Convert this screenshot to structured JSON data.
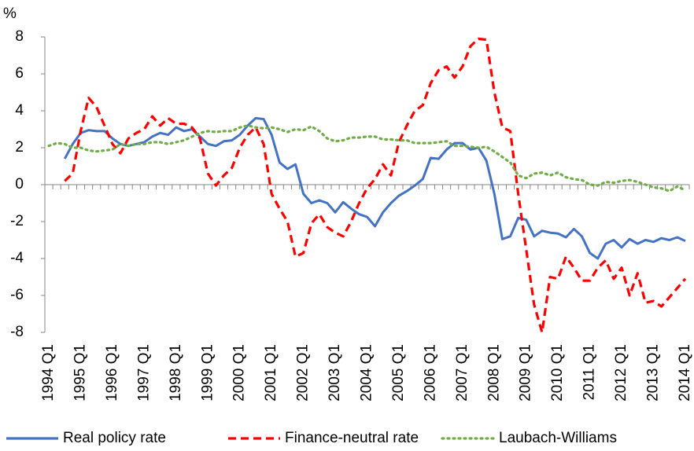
{
  "chart_data": {
    "type": "line",
    "y_unit": "%",
    "categories": [
      "1994 Q1",
      null,
      null,
      null,
      "1995 Q1",
      null,
      null,
      null,
      "1996 Q1",
      null,
      null,
      null,
      "1997 Q1",
      null,
      null,
      null,
      "1998 Q1",
      null,
      null,
      null,
      "1999 Q1",
      null,
      null,
      null,
      "2000 Q1",
      null,
      null,
      null,
      "2001 Q1",
      null,
      null,
      null,
      "2002 Q1",
      null,
      null,
      null,
      "2003 Q1",
      null,
      null,
      null,
      "2004 Q1",
      null,
      null,
      null,
      "2005 Q1",
      null,
      null,
      null,
      "2006 Q1",
      null,
      null,
      null,
      "2007 Q1",
      null,
      null,
      null,
      "2008 Q1",
      null,
      null,
      null,
      "2009 Q1",
      null,
      null,
      null,
      "2010 Q1",
      null,
      null,
      null,
      "2011 Q1",
      null,
      null,
      null,
      "2012 Q1",
      null,
      null,
      null,
      "2013 Q1",
      null,
      null,
      null,
      "2014 Q1"
    ],
    "series": [
      {
        "name": "Real policy rate",
        "color": "#4472c4",
        "style": "solid",
        "values": [
          null,
          null,
          1.4,
          2.2,
          2.8,
          2.95,
          2.9,
          2.9,
          2.5,
          2.2,
          2.1,
          2.2,
          2.3,
          2.6,
          2.8,
          2.7,
          3.1,
          2.9,
          3.0,
          2.6,
          2.2,
          2.1,
          2.35,
          2.4,
          2.7,
          3.2,
          3.6,
          3.55,
          2.7,
          1.2,
          0.85,
          1.1,
          -0.5,
          -1.0,
          -0.85,
          -1.0,
          -1.5,
          -0.95,
          -1.3,
          -1.6,
          -1.75,
          -2.25,
          -1.5,
          -1.0,
          -0.6,
          -0.35,
          -0.05,
          0.3,
          1.45,
          1.4,
          1.9,
          2.25,
          2.25,
          1.9,
          2.0,
          1.3,
          -0.5,
          -2.95,
          -2.8,
          -1.8,
          -1.9,
          -2.8,
          -2.5,
          -2.6,
          -2.65,
          -2.85,
          -2.4,
          -2.8,
          -3.7,
          -4.0,
          -3.2,
          -3.0,
          -3.4,
          -2.95,
          -3.2,
          -3.0,
          -3.1,
          -2.9,
          -3.0,
          -2.85,
          -3.05
        ]
      },
      {
        "name": "Finance-neutral rate",
        "color": "#ff0000",
        "style": "dashed",
        "values": [
          null,
          null,
          0.2,
          0.6,
          2.9,
          4.7,
          4.2,
          3.2,
          2.2,
          1.7,
          2.5,
          2.8,
          3.0,
          3.7,
          3.2,
          3.6,
          3.3,
          3.3,
          3.1,
          2.5,
          0.6,
          -0.05,
          0.5,
          0.9,
          2.0,
          2.7,
          3.1,
          2.2,
          -0.5,
          -1.3,
          -2.0,
          -3.9,
          -3.7,
          -2.1,
          -1.6,
          -2.3,
          -2.6,
          -2.8,
          -2.0,
          -1.0,
          -0.2,
          0.3,
          1.1,
          0.5,
          2.3,
          3.2,
          4.0,
          4.3,
          5.5,
          6.2,
          6.4,
          5.8,
          6.4,
          7.5,
          7.9,
          7.85,
          5.0,
          3.1,
          2.9,
          -0.5,
          -3.5,
          -6.5,
          -8.0,
          -5.0,
          -5.1,
          -3.9,
          -4.5,
          -5.2,
          -5.2,
          -4.5,
          -4.1,
          -5.1,
          -4.5,
          -6.0,
          -4.8,
          -6.4,
          -6.3,
          -6.6,
          -6.1,
          -5.6,
          -5.1
        ]
      },
      {
        "name": "Laubach-Williams",
        "color": "#70ad47",
        "style": "dotted",
        "values": [
          2.1,
          2.25,
          2.2,
          2.0,
          2.0,
          1.85,
          1.8,
          1.85,
          1.9,
          2.2,
          2.1,
          2.2,
          2.2,
          2.3,
          2.3,
          2.2,
          2.3,
          2.4,
          2.6,
          2.8,
          2.9,
          2.85,
          2.9,
          2.9,
          3.1,
          3.2,
          3.1,
          3.05,
          3.1,
          3.0,
          2.85,
          3.0,
          2.95,
          3.15,
          2.9,
          2.5,
          2.35,
          2.4,
          2.55,
          2.55,
          2.6,
          2.6,
          2.45,
          2.45,
          2.4,
          2.4,
          2.25,
          2.25,
          2.25,
          2.3,
          2.35,
          2.1,
          2.1,
          2.05,
          2.0,
          2.05,
          1.8,
          1.5,
          1.2,
          0.5,
          0.35,
          0.6,
          0.65,
          0.5,
          0.65,
          0.4,
          0.3,
          0.25,
          0.0,
          -0.05,
          0.15,
          0.1,
          0.2,
          0.25,
          0.15,
          0.0,
          -0.15,
          -0.2,
          -0.35,
          -0.1,
          -0.3
        ]
      }
    ],
    "ylim": [
      -8,
      8
    ],
    "yticks": [
      -8,
      -6,
      -4,
      -2,
      0,
      2,
      4,
      6,
      8
    ],
    "legend": "bottom"
  }
}
